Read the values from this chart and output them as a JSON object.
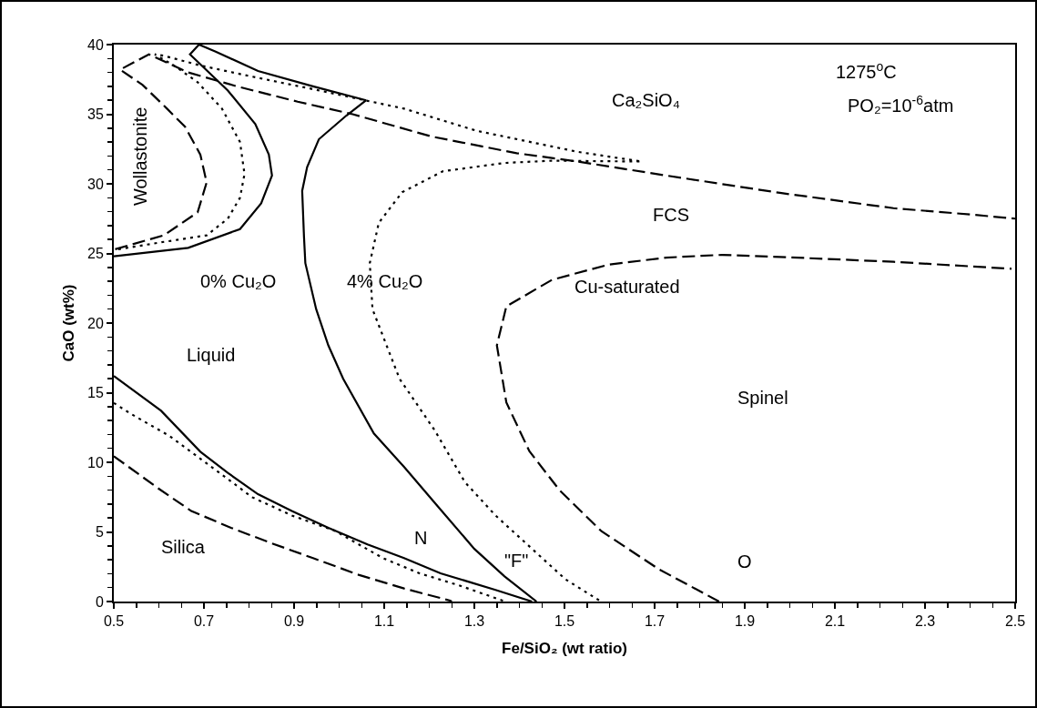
{
  "chart_data": {
    "type": "line",
    "xlabel": "Fe/SiO₂ (wt ratio)",
    "ylabel": "CaO (wt%)",
    "xlim": [
      0.5,
      2.5
    ],
    "ylim": [
      0,
      40
    ],
    "xticks": [
      0.5,
      0.7,
      0.9,
      1.1,
      1.3,
      1.5,
      1.7,
      1.9,
      2.1,
      2.3,
      2.5
    ],
    "yticks": [
      0,
      5,
      10,
      15,
      20,
      25,
      30,
      35,
      40
    ],
    "grid": false,
    "marker": "none",
    "series": [
      {
        "color": "#000000",
        "line_style": "solid",
        "x": [
          0.5,
          0.665,
          0.78,
          0.827,
          0.851,
          0.844,
          0.814,
          0.753,
          0.669,
          0.689,
          0.726,
          0.82,
          0.942,
          1.06,
          1.016,
          0.955,
          0.929,
          0.918,
          0.922,
          0.925,
          0.949,
          0.976,
          1.009,
          1.077,
          1.144,
          1.219,
          1.3,
          1.367,
          1.438
        ],
        "values": [
          24.8,
          25.4,
          26.75,
          28.6,
          30.6,
          32.1,
          34.3,
          36.7,
          39.3,
          40,
          39.5,
          38.1,
          37,
          36,
          34.9,
          33.2,
          31.2,
          29.5,
          26.2,
          24.3,
          21,
          18.4,
          16,
          12.07,
          9.67,
          6.83,
          3.78,
          1.81,
          0
        ]
      },
      {
        "color": "#000000",
        "line_style": "solid",
        "x": [
          0.5,
          0.605,
          0.692,
          0.753,
          0.82,
          0.895,
          0.976,
          1.063,
          1.144,
          1.225,
          1.347,
          1.428
        ],
        "values": [
          16.2,
          13.7,
          10.76,
          9.24,
          7.71,
          6.5,
          5.3,
          4.1,
          3.12,
          2.03,
          0.83,
          0
        ]
      },
      {
        "color": "#000000",
        "line_style": "dotted",
        "x": [
          0.51,
          0.605,
          0.706,
          0.753,
          0.78,
          0.79,
          0.78,
          0.74,
          0.686,
          0.638,
          0.591,
          0.611,
          0.692,
          0.807,
          0.942,
          1.144,
          1.306,
          1.529,
          1.671,
          1.472,
          1.367,
          1.23,
          1.14,
          1.088,
          1.068,
          1.074,
          1.134,
          1.212,
          1.279,
          1.347,
          1.414,
          1.502,
          1.581
        ],
        "values": [
          25.3,
          25.8,
          26.3,
          27.5,
          29,
          30.7,
          33,
          35.4,
          37.3,
          38.4,
          39.3,
          39.2,
          38.5,
          37.7,
          36.8,
          35.4,
          33.8,
          32.3,
          31.6,
          31.66,
          31.5,
          30.9,
          29.4,
          27.2,
          24.3,
          21,
          16,
          12.3,
          8.58,
          6.18,
          4.2,
          1.6,
          0
        ]
      },
      {
        "color": "#000000",
        "line_style": "dotted",
        "x": [
          0.5,
          0.537,
          0.625,
          0.726,
          0.807,
          0.895,
          0.99,
          1.097,
          1.178,
          1.266,
          1.36,
          1.37
        ],
        "values": [
          14.26,
          13.5,
          11.86,
          9.45,
          7.49,
          6.18,
          5.09,
          3.12,
          2.03,
          1.16,
          0.1,
          0
        ]
      },
      {
        "color": "#000000",
        "line_style": "dashed",
        "x": [
          0.503,
          0.611,
          0.686,
          0.706,
          0.692,
          0.658,
          0.618,
          0.564,
          0.514,
          0.578,
          0.665,
          0.773,
          0.908,
          1.03,
          1.205,
          1.394,
          1.529,
          1.598,
          1.725,
          1.978,
          2.23,
          2.4,
          2.5
        ],
        "values": [
          25.3,
          26.3,
          27.95,
          30.1,
          32.1,
          34.1,
          35.4,
          37.1,
          38.2,
          39.3,
          38,
          37,
          35.9,
          35,
          33.4,
          32.2,
          31.6,
          31.25,
          30.6,
          29.35,
          28.25,
          27.8,
          27.5
        ]
      },
      {
        "color": "#000000",
        "line_style": "dashed",
        "x": [
          1.843,
          1.709,
          1.582,
          1.489,
          1.422,
          1.371,
          1.35,
          1.371,
          1.472,
          1.598,
          1.725,
          1.85,
          1.978,
          2.23,
          2.492
        ],
        "values": [
          0,
          2.33,
          5.05,
          8,
          10.8,
          14.3,
          18.4,
          21.2,
          23.1,
          24.2,
          24.7,
          24.9,
          24.75,
          24.4,
          23.9
        ]
      },
      {
        "color": "#000000",
        "line_style": "dashed",
        "x": [
          0.5,
          0.598,
          0.672,
          0.76,
          0.848,
          0.942,
          1.043,
          1.144,
          1.246,
          1.25
        ],
        "values": [
          10.44,
          8.14,
          6.5,
          5.3,
          4.21,
          3.12,
          1.92,
          0.94,
          0.07,
          0
        ]
      }
    ],
    "annotations": [
      "Wollastonite",
      "0% Cu₂O",
      "4% Cu₂O",
      "Cu-saturated",
      "FCS",
      "Spinel",
      "O",
      "\"F\"",
      "N",
      "Silica",
      "Liquid",
      "Ca₂SiO₄",
      "1275$^{o}$C",
      "PO₂=10$^{-6}$atm"
    ]
  }
}
